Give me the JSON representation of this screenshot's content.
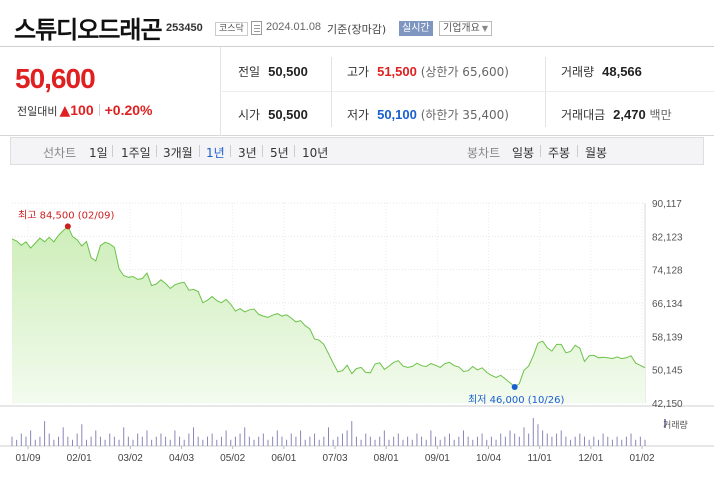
{
  "header": {
    "title": "스튜디오드래곤",
    "code": "253450",
    "market": "코스닥",
    "date": "2024.01.08",
    "basis": "기준(장마감)",
    "realtime_label": "실시간",
    "company_label": "기업개요"
  },
  "price": {
    "current": "50,600",
    "change_label": "전일대비",
    "change_direction": "up",
    "change_arrow": "▲",
    "change_value": "100",
    "change_percent": "+0.20%",
    "up_color": "#e02020",
    "down_color": "#1a5fd0"
  },
  "stats": {
    "prev_close": {
      "label": "전일",
      "value": "50,500"
    },
    "open": {
      "label": "시가",
      "value": "50,500"
    },
    "high": {
      "label": "고가",
      "value": "51,500",
      "sub": "(상한가 65,600)"
    },
    "low": {
      "label": "저가",
      "value": "50,100",
      "sub": "(하한가 35,400)"
    },
    "volume": {
      "label": "거래량",
      "value": "48,566"
    },
    "amount": {
      "label": "거래대금",
      "value": "2,470",
      "unit": "백만"
    }
  },
  "period_bar": {
    "line_caption": "선차트",
    "line_periods": [
      "1일",
      "1주일",
      "3개월",
      "1년",
      "3년",
      "5년",
      "10년"
    ],
    "active_period": "1년",
    "candle_caption": "봉차트",
    "candle_periods": [
      "일봉",
      "주봉",
      "월봉"
    ]
  },
  "chart_data": {
    "type": "area",
    "y_ticks": [
      "90,117",
      "82,123",
      "74,128",
      "66,134",
      "58,139",
      "50,145",
      "42,150"
    ],
    "ylim": [
      42150,
      90117
    ],
    "x_ticks": [
      "01/09",
      "02/01",
      "03/02",
      "04/03",
      "05/02",
      "06/01",
      "07/03",
      "08/01",
      "09/01",
      "10/04",
      "11/01",
      "12/01",
      "01/02"
    ],
    "series": [
      {
        "values": [
          81500,
          81000,
          80000,
          80800,
          79300,
          80500,
          81700,
          80800,
          81900,
          80800,
          82400,
          83500,
          84500,
          82100,
          81300,
          79800,
          80900,
          77000,
          76200,
          79900,
          80700,
          80300,
          79500,
          74300,
          72700,
          72300,
          72500,
          71800,
          72000,
          73300,
          70300,
          70700,
          71700,
          70800,
          69600,
          70500,
          70900,
          71100,
          69200,
          69400,
          68900,
          66200,
          66800,
          67700,
          66700,
          66200,
          67000,
          65800,
          64200,
          64800,
          64000,
          64500,
          64700,
          63400,
          63000,
          62700,
          63200,
          63600,
          63000,
          63300,
          62500,
          61600,
          61900,
          60700,
          59900,
          57500,
          57200,
          56200,
          54000,
          51700,
          49600,
          49900,
          51200,
          49200,
          50400,
          50700,
          49500,
          49400,
          51500,
          51800,
          50200,
          51000,
          51900,
          52300,
          51000,
          50700,
          50900,
          51700,
          51100,
          50900,
          51600,
          51200,
          50700,
          51600,
          51900,
          51100,
          50800,
          49700,
          49900,
          50900,
          50100,
          50600,
          49500,
          48800,
          48300,
          48800,
          47900,
          47000,
          46000,
          46800,
          50000,
          51000,
          53500,
          56500,
          57000,
          55400,
          54600,
          56200,
          56200,
          54200,
          54500,
          56000,
          55300,
          52100,
          53500,
          53600,
          53000,
          53100,
          53000,
          52800,
          53200,
          52800,
          53000,
          53500,
          51700,
          51200,
          50600
        ]
      }
    ],
    "annotations": [
      {
        "label": "최고",
        "value": "84,500",
        "date": "(02/09)"
      },
      {
        "label": "최저",
        "value": "46,000",
        "date": "(10/26)"
      }
    ],
    "volume_label": "거래량",
    "volume": [
      3,
      2,
      4,
      3,
      5,
      2,
      3,
      8,
      4,
      2,
      3,
      6,
      3,
      2,
      4,
      7,
      2,
      3,
      5,
      3,
      2,
      4,
      3,
      2,
      6,
      3,
      2,
      4,
      3,
      5,
      2,
      3,
      4,
      3,
      2,
      5,
      3,
      2,
      4,
      6,
      3,
      2,
      3,
      4,
      2,
      3,
      5,
      2,
      3,
      4,
      6,
      3,
      2,
      3,
      4,
      2,
      3,
      5,
      3,
      2,
      4,
      3,
      5,
      2,
      3,
      4,
      2,
      3,
      6,
      2,
      3,
      4,
      5,
      8,
      3,
      2,
      4,
      3,
      2,
      3,
      5,
      2,
      3,
      4,
      2,
      3,
      2,
      4,
      3,
      2,
      5,
      3,
      2,
      3,
      4,
      2,
      3,
      5,
      3,
      2,
      3,
      4,
      2,
      3,
      2,
      4,
      3,
      5,
      4,
      3,
      6,
      4,
      9,
      7,
      5,
      4,
      3,
      4,
      5,
      3,
      2,
      3,
      4,
      3,
      2,
      3,
      2,
      4,
      3,
      2,
      3,
      2,
      3,
      4,
      2,
      3,
      2
    ],
    "colors": {
      "line": "#6cc24a",
      "fill_top": "#cdeeb9",
      "fill_bottom": "#f3fbee",
      "volume": "#8a86b8"
    }
  }
}
